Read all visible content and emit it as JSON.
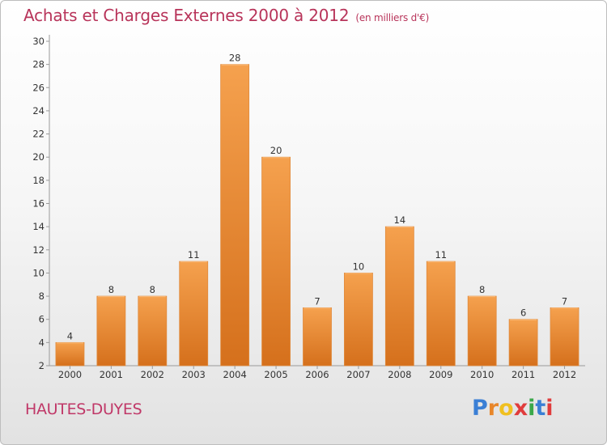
{
  "header": {
    "title": "Achats et Charges Externes 2000 à 2012",
    "subtitle": "(en milliers d'€)"
  },
  "footer": {
    "commune": "HAUTES-DUYES",
    "logo": [
      "P",
      "r",
      "o",
      "x",
      "i",
      "t",
      "i"
    ]
  },
  "colors": {
    "title": "#b8345a",
    "bar_light": "#f5a14e",
    "bar_dark": "#d5701c",
    "logo": [
      "#3a7fd5",
      "#e8862a",
      "#f0c020",
      "#e03c3c",
      "#3aa84a",
      "#3a7fd5",
      "#e03c3c"
    ]
  },
  "chart_data": {
    "type": "bar",
    "categories": [
      "2000",
      "2001",
      "2002",
      "2003",
      "2004",
      "2005",
      "2006",
      "2007",
      "2008",
      "2009",
      "2010",
      "2011",
      "2012"
    ],
    "values": [
      4,
      8,
      8,
      11,
      28,
      20,
      7,
      10,
      14,
      11,
      8,
      6,
      7
    ],
    "ylim": [
      2,
      30
    ],
    "yticks": [
      2,
      4,
      6,
      8,
      10,
      12,
      14,
      16,
      18,
      20,
      22,
      24,
      26,
      28,
      30
    ],
    "grid": false,
    "data_labels": true
  }
}
